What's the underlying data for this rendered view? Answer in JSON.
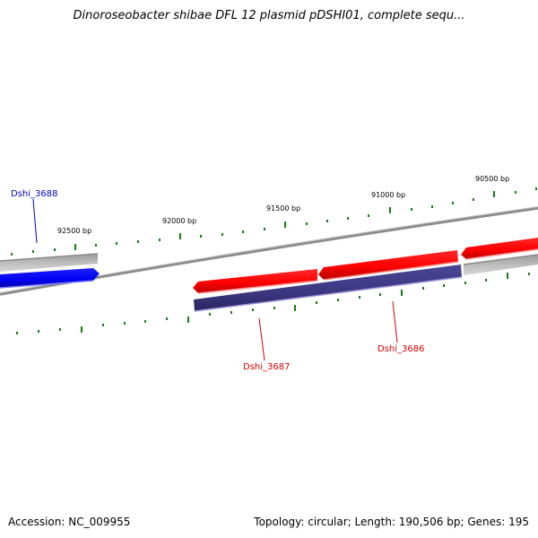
{
  "title": "Dinoroseobacter shibae DFL 12 plasmid pDSHI01, complete sequ...",
  "footer": {
    "accession": "Accession: NC_009955",
    "summary": "Topology: circular; Length: 190,506 bp; Genes: 195"
  },
  "map": {
    "bp_labels": [
      "92500 bp",
      "92000 bp",
      "91500 bp",
      "91000 bp",
      "90500 bp"
    ],
    "genes": [
      {
        "label": "Dshi_3688",
        "color": "#0000c8",
        "strand": "forward"
      },
      {
        "label": "Dshi_3687",
        "color": "#d40000",
        "strand": "reverse"
      },
      {
        "label": "Dshi_3686",
        "color": "#d40000",
        "strand": "reverse"
      }
    ],
    "colors": {
      "forward_gene": "#0000ff",
      "reverse_gene": "#ff0000",
      "paired_gene": "#3c3780",
      "backbone": "#8c8c8c",
      "ticks": "#1a7a1a"
    }
  }
}
